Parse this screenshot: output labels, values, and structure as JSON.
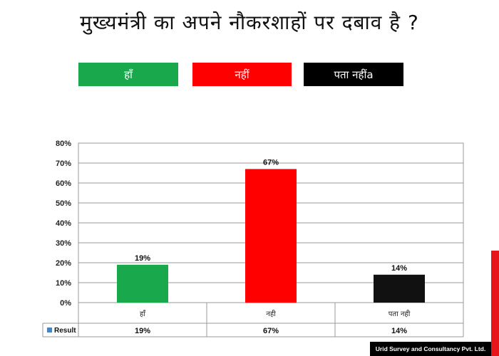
{
  "title": "मुख्यमंत्री का अपने नौकरशाहों पर दबाव है ?",
  "legend": [
    {
      "label": "हाँ",
      "color": "#1aa84c"
    },
    {
      "label": "नहीं",
      "color": "#ff0000"
    },
    {
      "label": "पता नहींa",
      "color": "#000000"
    }
  ],
  "footer": "Urid Survey and Consultancy Pvt. Ltd.",
  "accent_color": "#e8141c",
  "chart_data": {
    "type": "bar",
    "categories": [
      "हाँ",
      "नही",
      "पता नही"
    ],
    "series": [
      {
        "name": "Result",
        "values": [
          19,
          67,
          14
        ],
        "colors": [
          "#1aa84c",
          "#ff0000",
          "#111111"
        ]
      }
    ],
    "data_labels": [
      "19%",
      "67%",
      "14%"
    ],
    "ylim": [
      0,
      80
    ],
    "yticks": [
      "0%",
      "10%",
      "20%",
      "30%",
      "40%",
      "50%",
      "60%",
      "70%",
      "80%"
    ],
    "grid": true,
    "data_table": {
      "row_header": "Result",
      "values": [
        "19%",
        "67%",
        "14%"
      ]
    }
  }
}
